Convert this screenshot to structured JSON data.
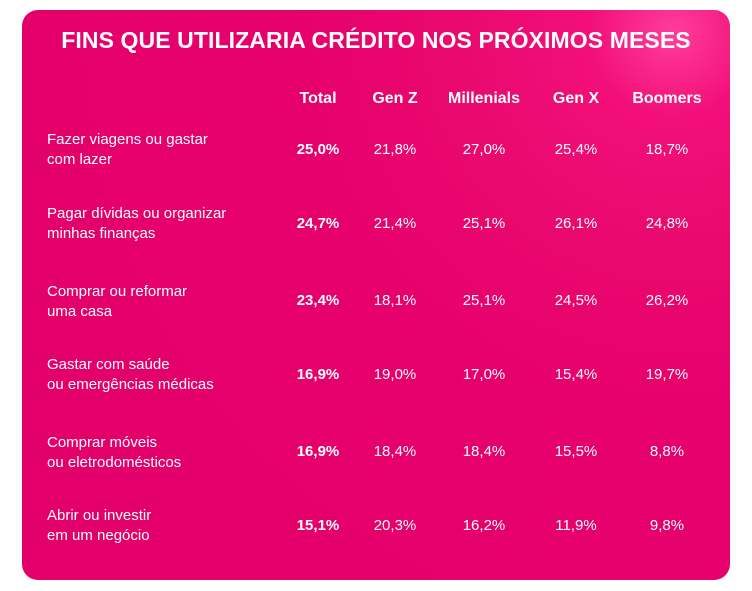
{
  "chart_data": {
    "type": "table",
    "title": "FINS QUE UTILIZARIA CRÉDITO NOS PRÓXIMOS MESES",
    "columns": [
      "Total",
      "Gen Z",
      "Millenials",
      "Gen X",
      "Boomers"
    ],
    "rows": [
      {
        "label": "Fazer viagens ou gastar\ncom lazer",
        "values": [
          "25,0%",
          "21,8%",
          "27,0%",
          "25,4%",
          "18,7%"
        ]
      },
      {
        "label": "Pagar dívidas ou organizar\nminhas finanças",
        "values": [
          "24,7%",
          "21,4%",
          "25,1%",
          "26,1%",
          "24,8%"
        ]
      },
      {
        "label": "Comprar ou reformar\numa casa",
        "values": [
          "23,4%",
          "18,1%",
          "25,1%",
          "24,5%",
          "26,2%"
        ]
      },
      {
        "label": "Gastar com saúde\nou emergências médicas",
        "values": [
          "16,9%",
          "19,0%",
          "17,0%",
          "15,4%",
          "19,7%"
        ]
      },
      {
        "label": "Comprar móveis\nou eletrodomésticos",
        "values": [
          "16,9%",
          "18,4%",
          "18,4%",
          "15,5%",
          "8,8%"
        ]
      },
      {
        "label": "Abrir ou investir\nem um negócio",
        "values": [
          "15,1%",
          "20,3%",
          "16,2%",
          "11,9%",
          "9,8%"
        ]
      }
    ]
  },
  "colors": {
    "background": "#e3006a",
    "text": "#ffffff"
  }
}
